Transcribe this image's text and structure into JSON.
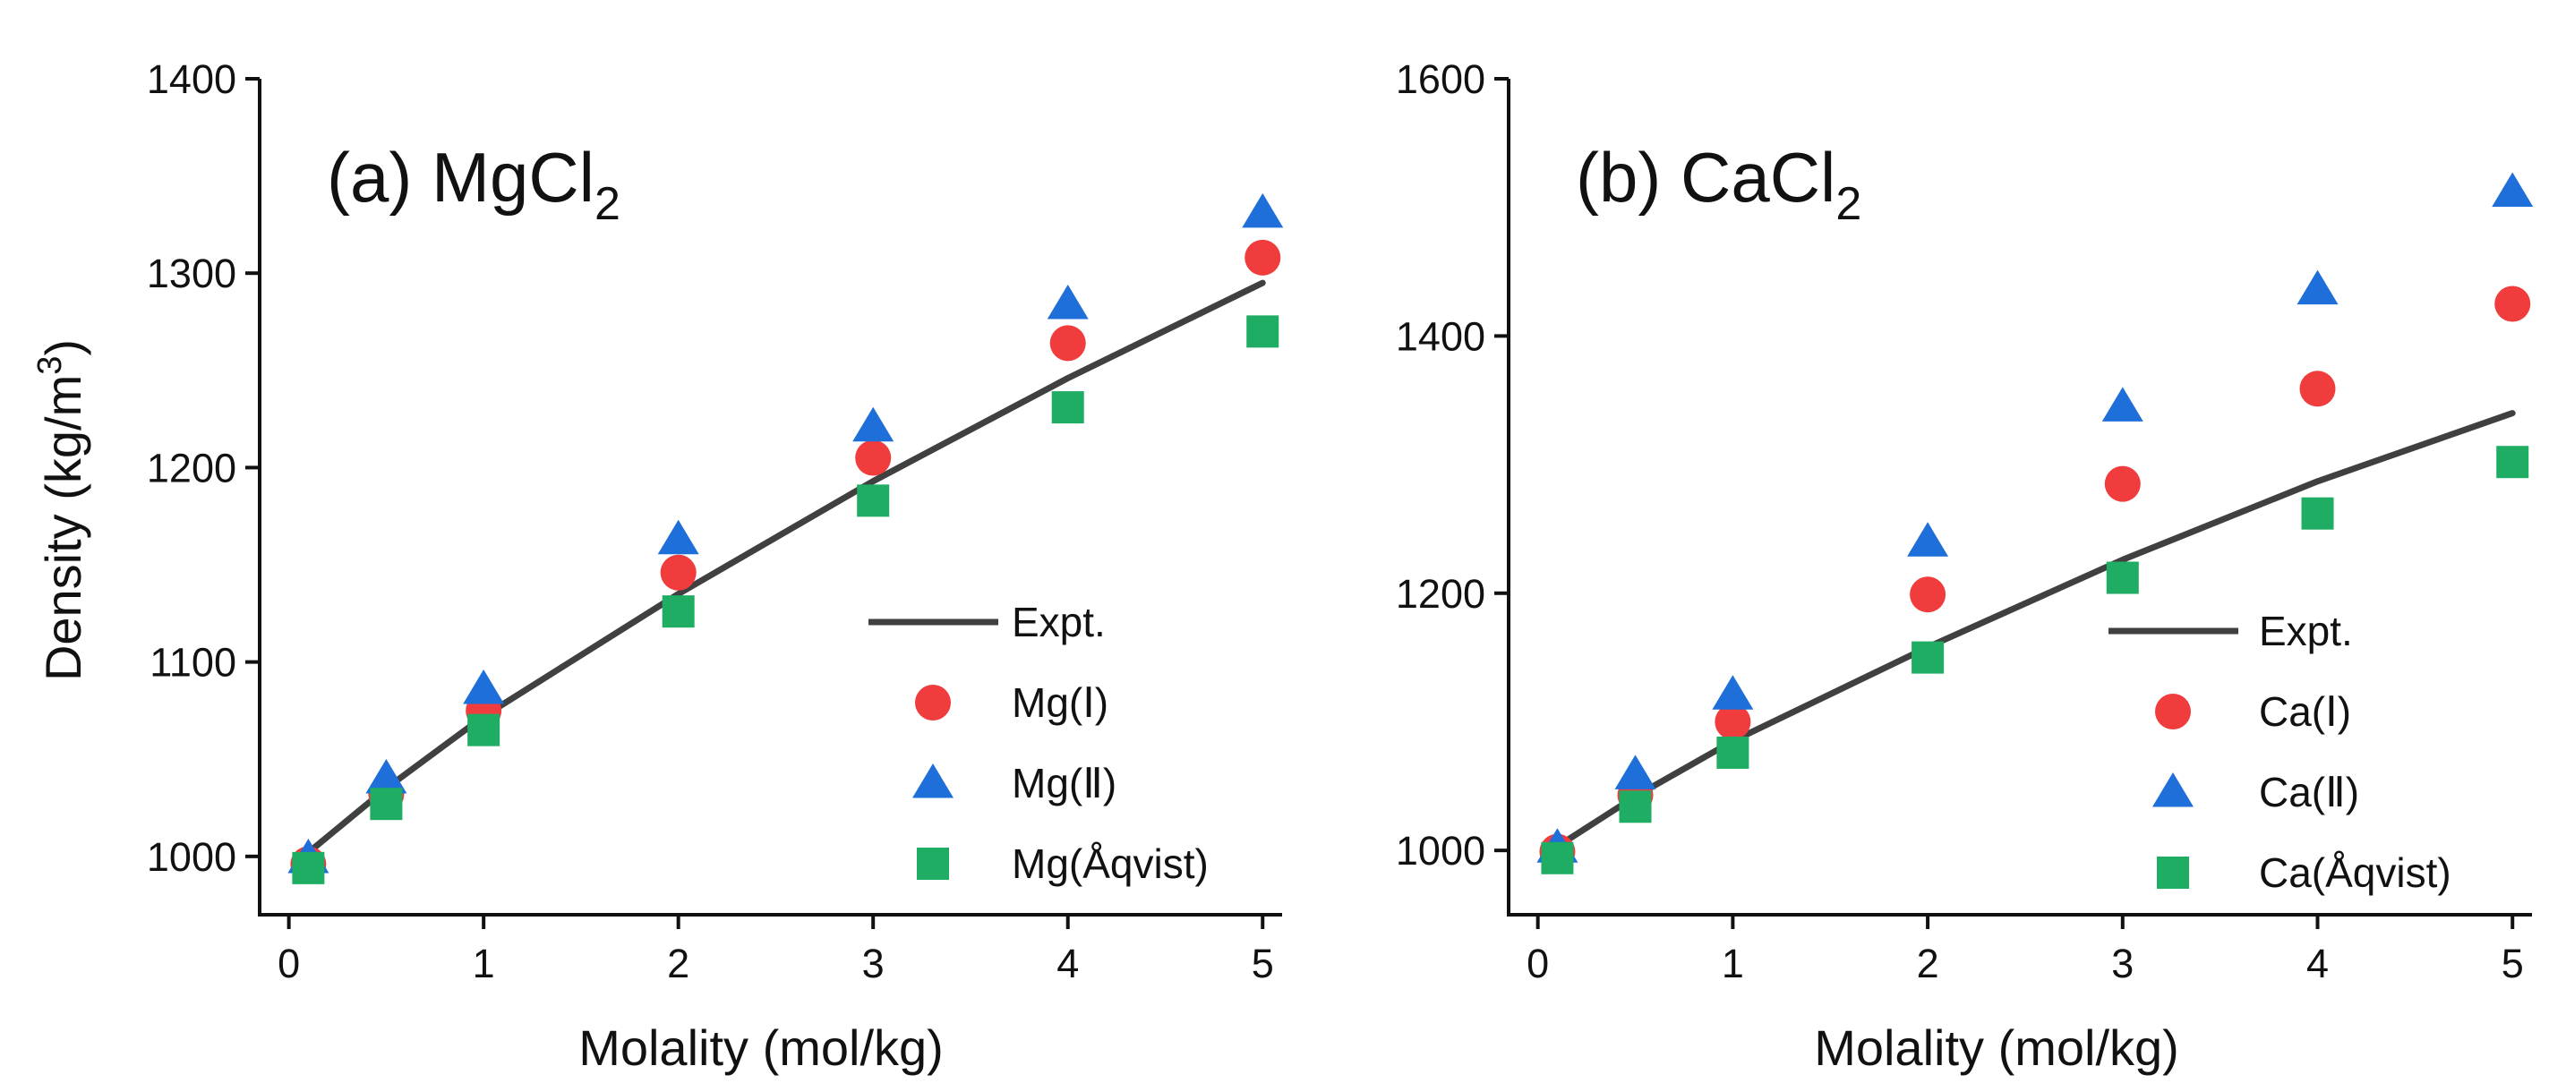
{
  "chart_data": [
    {
      "type": "scatter",
      "panel_label": "(a) MgCl",
      "panel_label_sub": "2",
      "xlabel": "Molality (mol/kg)",
      "ylabel": "Density (kg/m",
      "ylabel_sup": "3",
      "ylabel_end": ")",
      "xlim": [
        -0.15,
        5.1
      ],
      "ylim": [
        970,
        1400
      ],
      "xticks": [
        0,
        1,
        2,
        3,
        4,
        5
      ],
      "xtick_labels": [
        "0",
        "1",
        "2",
        "3",
        "4",
        "5"
      ],
      "yticks": [
        1000,
        1100,
        1200,
        1300,
        1400
      ],
      "ytick_labels": [
        "1000",
        "1100",
        "1200",
        "1300",
        "1400"
      ],
      "legend_position": "bottom-right",
      "x": [
        0.1,
        0.5,
        1,
        2,
        3,
        4,
        5
      ],
      "series": [
        {
          "name": "Expt.",
          "marker": "line",
          "color": "#404040",
          "values": [
            1002,
            1035,
            1072,
            1135,
            1193,
            1246,
            1295
          ]
        },
        {
          "name": "Mg(Ⅰ)",
          "marker": "circle",
          "color": "#f03c3c",
          "values": [
            996,
            1032,
            1075,
            1146,
            1205,
            1264,
            1308
          ]
        },
        {
          "name": "Mg(Ⅱ)",
          "marker": "triangle",
          "color": "#1e6fd9",
          "values": [
            999,
            1040,
            1086,
            1163,
            1221,
            1284,
            1331
          ]
        },
        {
          "name": "Mg(Åqvist)",
          "marker": "square",
          "color": "#1fad63",
          "values": [
            994,
            1027,
            1065,
            1126,
            1183,
            1231,
            1270
          ]
        }
      ]
    },
    {
      "type": "scatter",
      "panel_label": "(b) CaCl",
      "panel_label_sub": "2",
      "xlabel": "Molality (mol/kg)",
      "xlim": [
        -0.15,
        5.1
      ],
      "ylim": [
        950,
        1600
      ],
      "xticks": [
        0,
        1,
        2,
        3,
        4,
        5
      ],
      "xtick_labels": [
        "0",
        "1",
        "2",
        "3",
        "4",
        "5"
      ],
      "yticks": [
        1000,
        1200,
        1400,
        1600
      ],
      "ytick_labels": [
        "1000",
        "1200",
        "1400",
        "1600"
      ],
      "legend_position": "bottom-right",
      "x": [
        0.1,
        0.5,
        1,
        2,
        3,
        4,
        5
      ],
      "series": [
        {
          "name": "Expt.",
          "marker": "line",
          "color": "#404040",
          "values": [
            1003,
            1042,
            1085,
            1158,
            1226,
            1287,
            1340
          ]
        },
        {
          "name": "Ca(Ⅰ)",
          "marker": "circle",
          "color": "#f03c3c",
          "values": [
            999,
            1043,
            1100,
            1199,
            1285,
            1359,
            1425
          ]
        },
        {
          "name": "Ca(Ⅱ)",
          "marker": "triangle",
          "color": "#1e6fd9",
          "values": [
            1002,
            1059,
            1121,
            1240,
            1345,
            1436,
            1512
          ]
        },
        {
          "name": "Ca(Åqvist)",
          "marker": "square",
          "color": "#1fad63",
          "values": [
            994,
            1034,
            1076,
            1150,
            1212,
            1262,
            1302
          ]
        }
      ]
    }
  ]
}
